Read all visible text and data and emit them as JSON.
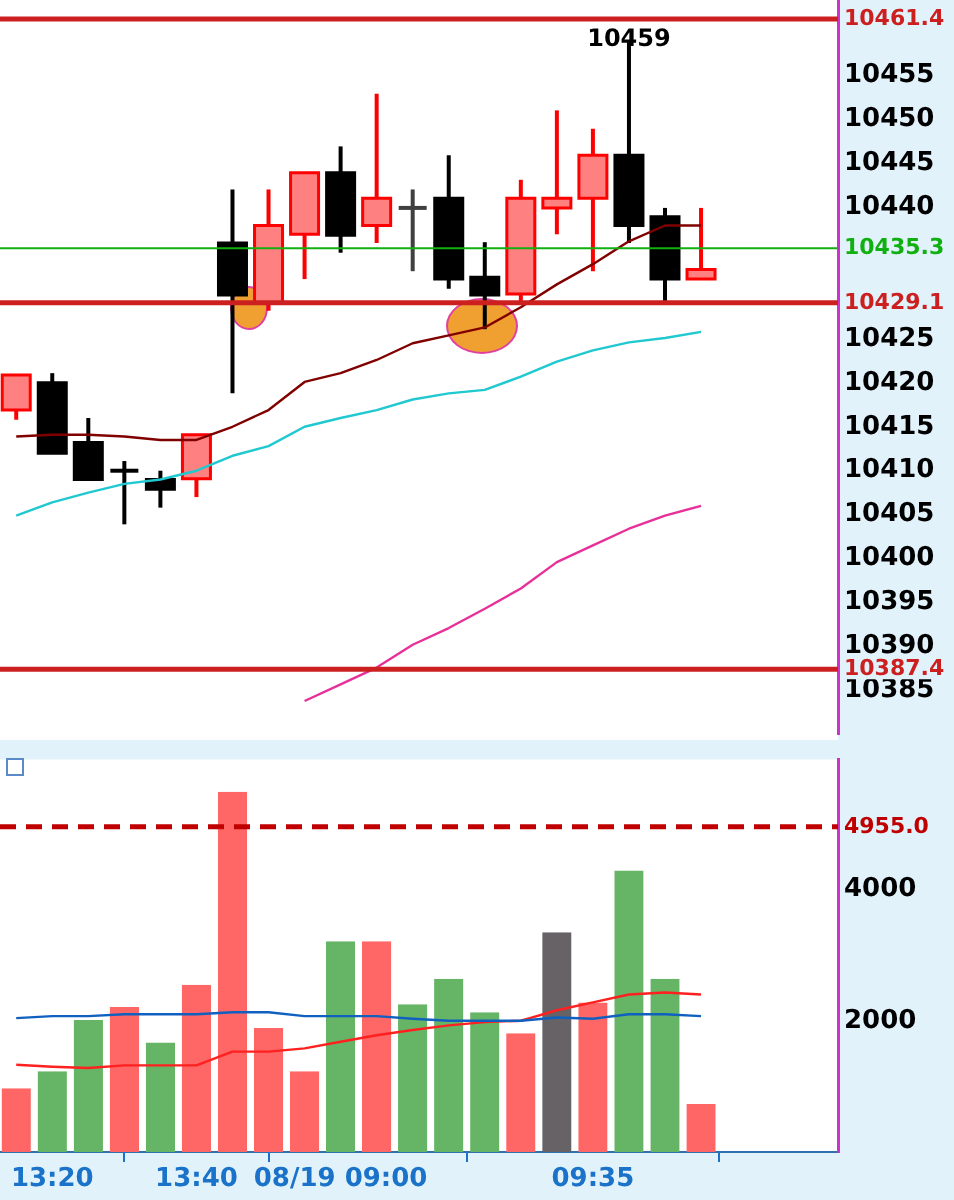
{
  "chart_data": [
    {
      "type": "candlestick",
      "categories": [
        null,
        null,
        null,
        null,
        null,
        null,
        null,
        null,
        null,
        null,
        null,
        null,
        null,
        null,
        null,
        null,
        null,
        null,
        null,
        null
      ],
      "ohlc": [
        [
          10416.9,
          10420.9,
          10415.8,
          10420.9
        ],
        [
          10420.0,
          10421.1,
          10412.0,
          10412.0
        ],
        [
          10413.2,
          10416.0,
          10409.0,
          10409.0
        ],
        [
          10410.0,
          10411.1,
          10403.9,
          10410.0
        ],
        [
          10409.0,
          10410.0,
          10405.8,
          10407.9
        ],
        [
          10409.1,
          10414.1,
          10407.0,
          10414.1
        ],
        [
          10435.9,
          10442.0,
          10418.8,
          10430.0
        ],
        [
          10429.1,
          10442.0,
          10428.2,
          10437.9
        ],
        [
          10436.9,
          10443.9,
          10431.8,
          10443.9
        ],
        [
          10443.9,
          10446.9,
          10434.8,
          10436.8
        ],
        [
          10437.9,
          10452.9,
          10435.9,
          10441.0
        ],
        [
          10439.9,
          10442.0,
          10432.7,
          10439.9
        ],
        [
          10441.0,
          10445.9,
          10430.7,
          10431.8
        ],
        [
          10432.0,
          10436.0,
          10426.1,
          10430.0
        ],
        [
          10430.1,
          10443.1,
          10429.0,
          10441.0
        ],
        [
          10439.9,
          10451.0,
          10436.9,
          10441.0
        ],
        [
          10441.0,
          10448.9,
          10432.7,
          10445.9
        ],
        [
          10445.9,
          10459,
          10435.9,
          10437.9
        ],
        [
          10438.9,
          10439.9,
          10429.1,
          10431.8
        ],
        [
          10431.8,
          10439.9,
          10431.8,
          10432.9
        ]
      ],
      "colors": [
        "#ff8080",
        "#000000",
        "#000000",
        "#000000",
        "#000000",
        "#ff8080",
        "#000000",
        "#ff8080",
        "#ff8080",
        "#000000",
        "#ff8080",
        "#404040",
        "#000000",
        "#000000",
        "#ff8080",
        "#ff8080",
        "#ff8080",
        "#000000",
        "#000000",
        "#ff8080"
      ],
      "series": [
        {
          "type": "line",
          "color": "#800000",
          "values": [
            10413.9,
            10414.1,
            10414.1,
            10413.9,
            10413.5,
            10413.5,
            10415.0,
            10416.9,
            10420.1,
            10421.1,
            10422.6,
            10424.5,
            10425.4,
            10426.3,
            10428.6,
            10431.2,
            10433.5,
            10436.1,
            10437.9,
            10437.9
          ]
        },
        {
          "type": "line",
          "color": "#20c8d0",
          "values": [
            10404.9,
            10406.4,
            10407.5,
            10408.5,
            10409.0,
            10410.0,
            10411.7,
            10412.8,
            10415.0,
            10416.0,
            10416.9,
            10418.1,
            10418.8,
            10419.2,
            10420.7,
            10422.4,
            10423.7,
            10424.6,
            10425.1,
            10425.8
          ]
        },
        {
          "type": "line",
          "color": "#e8309a",
          "values": [
            null,
            null,
            null,
            null,
            null,
            null,
            null,
            null,
            10383.8,
            10385.7,
            10387.6,
            10390.2,
            10392.1,
            10394.3,
            10396.6,
            10399.6,
            10401.5,
            10403.4,
            10404.9,
            10406.0
          ]
        }
      ],
      "ylim": [
        10380,
        10463.6
      ],
      "yticks": [
        10385,
        10390,
        10395,
        10400,
        10405,
        10410,
        10415,
        10420,
        10425,
        10440,
        10445,
        10450,
        10455
      ],
      "tick_labels": "y",
      "ref_lines": [
        {
          "axis": "y",
          "value": 10461.4,
          "label": "10461.4",
          "color": "#cc2020"
        },
        {
          "axis": "y",
          "value": 10435.3,
          "label": "10435.3",
          "color": "#10b010"
        },
        {
          "axis": "y",
          "value": 10429.1,
          "label": "10429.1",
          "color": "#cc2020"
        },
        {
          "axis": "y",
          "value": 10387.4,
          "label": "10387.4",
          "color": "#cc2020"
        }
      ],
      "annotations": [
        {
          "text": "10459",
          "y": 10459
        }
      ],
      "grid": false,
      "legend": false
    },
    {
      "type": "bar",
      "categories": [
        null,
        "13:20",
        null,
        null,
        null,
        "13:40",
        null,
        null,
        null,
        "08/19 09:00",
        null,
        null,
        null,
        null,
        null,
        null,
        "09:35",
        null,
        null,
        null
      ],
      "series": [
        {
          "type": "bar",
          "colors": [
            "#ff6666",
            "#66b566",
            "#66b566",
            "#ff6666",
            "#66b566",
            "#ff6666",
            "#ff6666",
            "#ff6666",
            "#ff6666",
            "#66b566",
            "#ff6666",
            "#66b566",
            "#66b566",
            "#66b566",
            "#ff6666",
            "#666266",
            "#ff6666",
            "#66b566",
            "#66b566",
            "#ff6666"
          ],
          "values": [
            960,
            1220,
            2000,
            2200,
            1660,
            2540,
            5480,
            1880,
            1220,
            3200,
            3200,
            2240,
            2630,
            2120,
            1800,
            3340,
            2270,
            4280,
            2630,
            720
          ]
        },
        {
          "type": "line",
          "color": "#1060c0",
          "values": [
            2040,
            2070,
            2070,
            2100,
            2100,
            2100,
            2130,
            2130,
            2070,
            2070,
            2070,
            2030,
            2000,
            2000,
            2000,
            2050,
            2030,
            2100,
            2100,
            2070
          ]
        },
        {
          "type": "line",
          "color": "#ff2020",
          "values": [
            1330,
            1300,
            1280,
            1320,
            1320,
            1320,
            1530,
            1530,
            1580,
            1680,
            1780,
            1860,
            1930,
            1980,
            2000,
            2160,
            2280,
            2400,
            2430,
            2400
          ]
        }
      ],
      "ylim": [
        0,
        5980
      ],
      "yticks": [
        2000,
        4000
      ],
      "ref_lines": [
        {
          "axis": "y",
          "value": 4955,
          "label": "4955.0",
          "color": "#c00000",
          "line_style": "dashed"
        }
      ],
      "grid": false,
      "legend": false
    }
  ]
}
